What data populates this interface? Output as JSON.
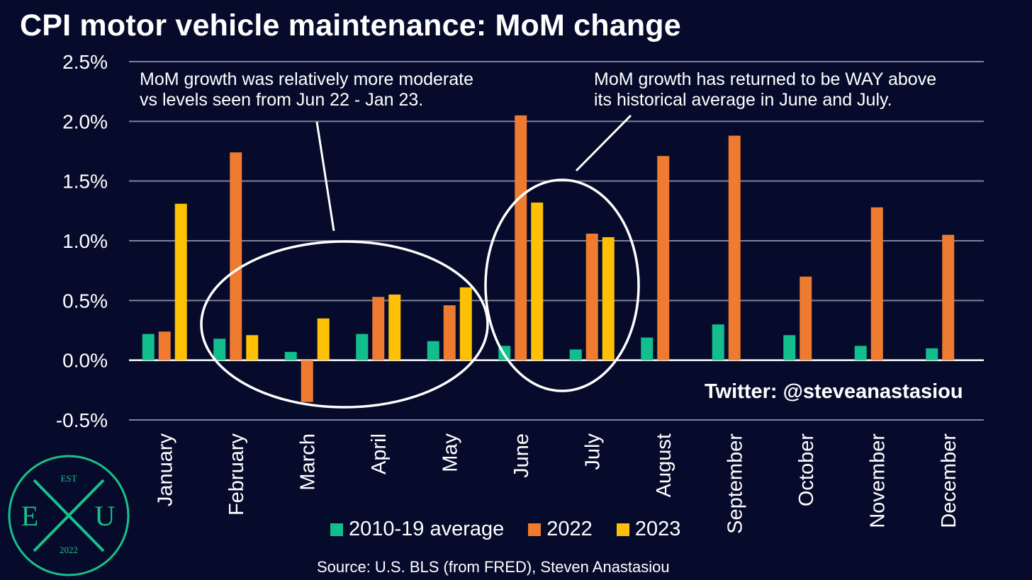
{
  "title": "CPI motor vehicle maintenance: MoM change",
  "annotations": {
    "left_line1": "MoM growth was relatively more moderate",
    "left_line2": "vs levels seen from Jun 22 - Jan 23.",
    "right_line1": "MoM growth has returned to be WAY above",
    "right_line2": "its historical average in June and July."
  },
  "twitter": "Twitter: @steveanastasiou",
  "source": "Source: U.S. BLS (from FRED), Steven Anastasiou",
  "logo": {
    "top": "EST",
    "left": "E",
    "right": "U",
    "bottom": "2022",
    "color": "#19c08a"
  },
  "chart_data": {
    "type": "bar",
    "categories": [
      "January",
      "February",
      "March",
      "April",
      "May",
      "June",
      "July",
      "August",
      "September",
      "October",
      "November",
      "December"
    ],
    "series": [
      {
        "name": "2010-19 average",
        "color": "#12be8c",
        "values": [
          0.22,
          0.18,
          0.07,
          0.22,
          0.16,
          0.12,
          0.09,
          0.19,
          0.3,
          0.21,
          0.12,
          0.1
        ]
      },
      {
        "name": "2022",
        "color": "#ee7b30",
        "values": [
          0.24,
          1.74,
          -0.35,
          0.53,
          0.46,
          2.05,
          1.06,
          1.71,
          1.88,
          0.7,
          1.28,
          1.05
        ]
      },
      {
        "name": "2023",
        "color": "#fdc005",
        "values": [
          1.31,
          0.21,
          0.35,
          0.55,
          0.61,
          1.32,
          1.03,
          null,
          null,
          null,
          null,
          null
        ]
      }
    ],
    "yticks": [
      "2.5%",
      "2.0%",
      "1.5%",
      "1.0%",
      "0.5%",
      "0.0%",
      "-0.5%"
    ],
    "ylim": [
      -0.5,
      2.5
    ],
    "grid": true,
    "legend_position": "bottom"
  }
}
